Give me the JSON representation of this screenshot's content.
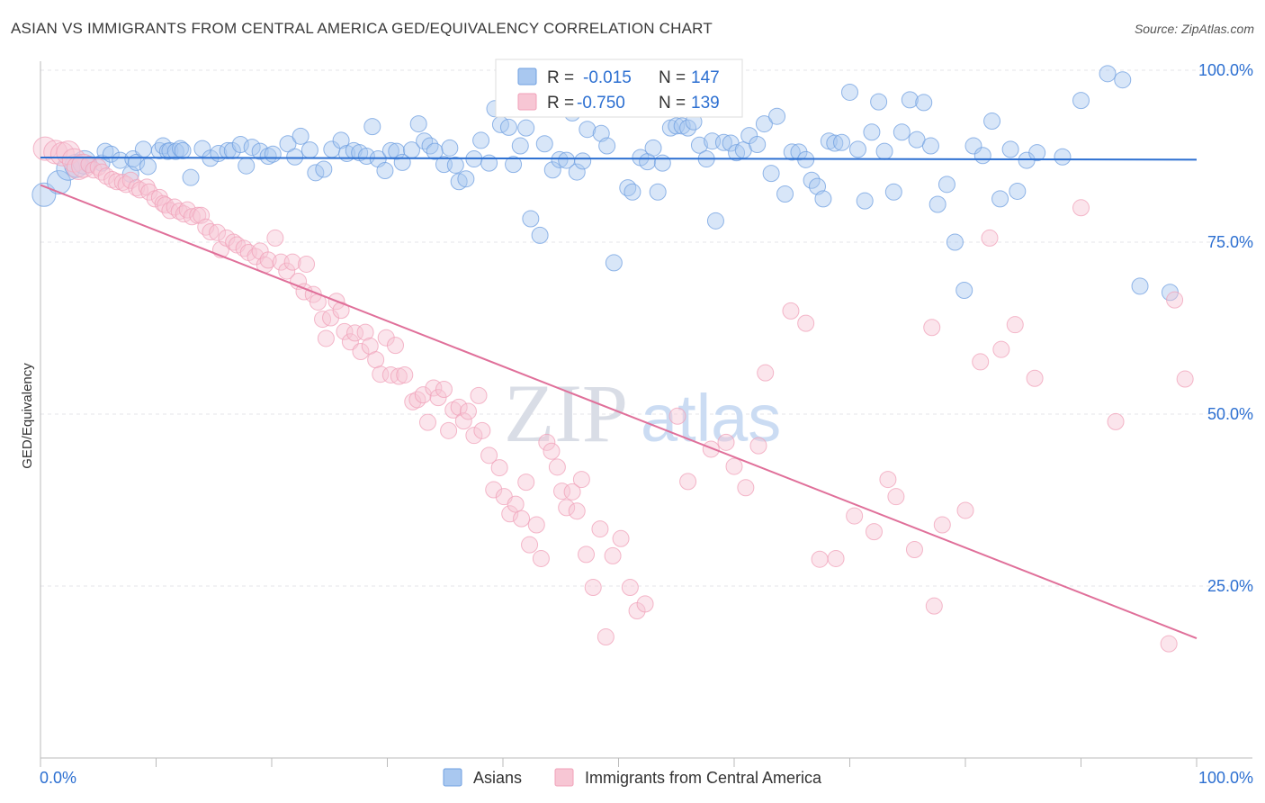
{
  "header": {
    "title": "ASIAN VS IMMIGRANTS FROM CENTRAL AMERICA GED/EQUIVALENCY CORRELATION CHART",
    "source": "Source: ZipAtlas.com"
  },
  "watermark": {
    "zip": "ZIP",
    "atlas": "atlas"
  },
  "colors": {
    "asian": "#6f9fe0",
    "asian_fill": "#a9c8f0",
    "asian_line": "#2c6fd1",
    "central": "#f0a0b8",
    "central_fill": "#f7c6d4",
    "central_line": "#e0709a",
    "value_text": "#2c6fd1",
    "grid": "#e4e4ea"
  },
  "legend_box": {
    "r_label": "R =",
    "n_label": "N =",
    "rows": [
      {
        "series": "asian",
        "r": "-0.015",
        "n": "147"
      },
      {
        "series": "central",
        "r": "-0.750",
        "n": "139"
      }
    ]
  },
  "bottom_legend": [
    "Asians",
    "Immigrants from Central America"
  ],
  "chart_data": {
    "type": "scatter",
    "title": "ASIAN VS IMMIGRANTS FROM CENTRAL AMERICA GED/EQUIVALENCY CORRELATION CHART",
    "xlabel": "",
    "ylabel": "GED/Equivalency",
    "xlim": [
      0,
      100
    ],
    "ylim": [
      0,
      100
    ],
    "x_tick_labels": [
      "0.0%",
      "100.0%"
    ],
    "y_tick_labels": [
      "25.0%",
      "50.0%",
      "75.0%",
      "100.0%"
    ],
    "y_ticks": [
      25,
      50,
      75,
      100
    ],
    "grid": true,
    "legend_position": "bottom",
    "series": [
      {
        "name": "Asians",
        "r": -0.015,
        "n": 147,
        "trend": {
          "x": [
            0,
            100
          ],
          "y": [
            87.3,
            87.0
          ]
        },
        "points": [
          [
            0.3,
            81.9
          ],
          [
            1.6,
            83.7
          ],
          [
            2.4,
            85.7
          ],
          [
            3.1,
            86.1
          ],
          [
            3.8,
            86.6
          ],
          [
            4.2,
            86.3
          ],
          [
            5.3,
            86.5
          ],
          [
            5.6,
            88.2
          ],
          [
            6.1,
            87.8
          ],
          [
            6.9,
            86.9
          ],
          [
            7.8,
            84.9
          ],
          [
            8.0,
            87.1
          ],
          [
            8.3,
            86.6
          ],
          [
            8.9,
            88.5
          ],
          [
            9.3,
            86.0
          ],
          [
            10.3,
            88.3
          ],
          [
            10.6,
            89.0
          ],
          [
            11.0,
            88.2
          ],
          [
            11.2,
            88.3
          ],
          [
            11.7,
            88.2
          ],
          [
            12.1,
            88.6
          ],
          [
            12.3,
            88.3
          ],
          [
            13.0,
            84.4
          ],
          [
            14.0,
            88.6
          ],
          [
            14.7,
            87.2
          ],
          [
            15.4,
            87.9
          ],
          [
            16.2,
            88.3
          ],
          [
            16.6,
            88.3
          ],
          [
            17.3,
            89.2
          ],
          [
            17.8,
            86.1
          ],
          [
            18.3,
            88.8
          ],
          [
            19.0,
            88.2
          ],
          [
            19.7,
            87.5
          ],
          [
            20.1,
            87.8
          ],
          [
            21.4,
            89.3
          ],
          [
            22.0,
            87.4
          ],
          [
            22.5,
            90.4
          ],
          [
            23.3,
            88.4
          ],
          [
            23.8,
            85.1
          ],
          [
            24.5,
            85.6
          ],
          [
            25.2,
            88.5
          ],
          [
            26.0,
            89.8
          ],
          [
            26.5,
            87.9
          ],
          [
            27.1,
            88.3
          ],
          [
            27.6,
            88.0
          ],
          [
            28.2,
            87.5
          ],
          [
            28.7,
            91.8
          ],
          [
            29.2,
            87.1
          ],
          [
            29.8,
            85.4
          ],
          [
            30.3,
            88.3
          ],
          [
            30.8,
            88.2
          ],
          [
            31.3,
            86.6
          ],
          [
            32.1,
            88.4
          ],
          [
            32.7,
            92.2
          ],
          [
            33.2,
            89.7
          ],
          [
            33.7,
            89.0
          ],
          [
            34.1,
            88.2
          ],
          [
            34.9,
            86.3
          ],
          [
            35.4,
            88.7
          ],
          [
            35.9,
            86.2
          ],
          [
            36.2,
            83.8
          ],
          [
            36.8,
            84.2
          ],
          [
            37.5,
            87.1
          ],
          [
            38.1,
            89.8
          ],
          [
            38.8,
            86.5
          ],
          [
            39.3,
            94.4
          ],
          [
            39.8,
            92.1
          ],
          [
            40.5,
            91.7
          ],
          [
            40.9,
            86.3
          ],
          [
            41.5,
            89.0
          ],
          [
            42.0,
            91.6
          ],
          [
            42.4,
            78.4
          ],
          [
            43.2,
            76.0
          ],
          [
            43.6,
            89.3
          ],
          [
            44.3,
            85.5
          ],
          [
            44.9,
            87.0
          ],
          [
            45.5,
            86.9
          ],
          [
            46.0,
            93.8
          ],
          [
            46.4,
            85.2
          ],
          [
            46.9,
            86.8
          ],
          [
            47.3,
            91.4
          ],
          [
            48.0,
            94.5
          ],
          [
            48.5,
            90.8
          ],
          [
            49.0,
            89.0
          ],
          [
            49.6,
            72.0
          ],
          [
            50.2,
            94.7
          ],
          [
            50.8,
            82.9
          ],
          [
            51.2,
            82.3
          ],
          [
            51.9,
            87.3
          ],
          [
            52.5,
            86.7
          ],
          [
            53.0,
            88.7
          ],
          [
            53.4,
            82.3
          ],
          [
            53.8,
            86.5
          ],
          [
            54.5,
            91.6
          ],
          [
            55.0,
            91.9
          ],
          [
            55.5,
            91.9
          ],
          [
            56.0,
            91.6
          ],
          [
            56.5,
            92.5
          ],
          [
            57.0,
            89.1
          ],
          [
            57.6,
            87.1
          ],
          [
            58.1,
            89.7
          ],
          [
            58.4,
            78.1
          ],
          [
            59.1,
            89.5
          ],
          [
            59.7,
            89.4
          ],
          [
            60.2,
            88.0
          ],
          [
            60.8,
            88.4
          ],
          [
            61.3,
            90.5
          ],
          [
            62.0,
            89.2
          ],
          [
            62.6,
            92.2
          ],
          [
            63.2,
            85.0
          ],
          [
            63.7,
            93.3
          ],
          [
            64.4,
            82.0
          ],
          [
            65.0,
            88.1
          ],
          [
            65.6,
            88.1
          ],
          [
            66.2,
            87.0
          ],
          [
            66.7,
            84.0
          ],
          [
            67.2,
            83.1
          ],
          [
            67.7,
            81.3
          ],
          [
            68.2,
            89.7
          ],
          [
            68.7,
            89.4
          ],
          [
            69.3,
            89.5
          ],
          [
            70.0,
            96.8
          ],
          [
            70.7,
            88.5
          ],
          [
            71.3,
            81.0
          ],
          [
            71.9,
            91.0
          ],
          [
            72.5,
            95.4
          ],
          [
            73.0,
            88.2
          ],
          [
            73.8,
            82.3
          ],
          [
            74.5,
            91.0
          ],
          [
            75.2,
            95.7
          ],
          [
            75.8,
            89.9
          ],
          [
            76.4,
            95.3
          ],
          [
            77.0,
            89.0
          ],
          [
            77.6,
            80.5
          ],
          [
            78.4,
            83.4
          ],
          [
            79.1,
            75.0
          ],
          [
            79.9,
            68.0
          ],
          [
            80.7,
            89.0
          ],
          [
            81.5,
            87.6
          ],
          [
            82.3,
            92.6
          ],
          [
            83.0,
            81.3
          ],
          [
            83.9,
            88.5
          ],
          [
            84.5,
            82.4
          ],
          [
            85.3,
            86.9
          ],
          [
            86.2,
            88.0
          ],
          [
            88.4,
            87.4
          ],
          [
            90.0,
            95.6
          ],
          [
            92.3,
            99.5
          ],
          [
            93.6,
            98.6
          ],
          [
            95.1,
            68.6
          ],
          [
            97.7,
            67.7
          ]
        ]
      },
      {
        "name": "Immigrants from Central America",
        "r": -0.75,
        "n": 139,
        "trend": {
          "x": [
            0,
            100
          ],
          "y": [
            83.3,
            17.4
          ]
        },
        "points": [
          [
            0.4,
            88.6
          ],
          [
            1.3,
            88.1
          ],
          [
            1.9,
            87.8
          ],
          [
            2.4,
            88.0
          ],
          [
            2.9,
            86.9
          ],
          [
            3.3,
            85.8
          ],
          [
            3.7,
            86.1
          ],
          [
            4.2,
            86.3
          ],
          [
            4.6,
            85.5
          ],
          [
            5.0,
            85.9
          ],
          [
            5.3,
            85.2
          ],
          [
            5.7,
            84.6
          ],
          [
            6.2,
            84.1
          ],
          [
            6.6,
            83.8
          ],
          [
            7.1,
            83.7
          ],
          [
            7.4,
            83.4
          ],
          [
            7.8,
            84.0
          ],
          [
            8.3,
            82.9
          ],
          [
            8.6,
            82.6
          ],
          [
            9.2,
            83.0
          ],
          [
            9.4,
            82.3
          ],
          [
            9.9,
            81.3
          ],
          [
            10.3,
            81.5
          ],
          [
            10.6,
            80.6
          ],
          [
            10.8,
            80.4
          ],
          [
            11.2,
            79.6
          ],
          [
            11.6,
            80.1
          ],
          [
            12.0,
            79.5
          ],
          [
            12.4,
            79.1
          ],
          [
            12.7,
            79.7
          ],
          [
            13.1,
            78.7
          ],
          [
            13.6,
            78.9
          ],
          [
            13.9,
            78.9
          ],
          [
            14.3,
            77.2
          ],
          [
            14.7,
            76.5
          ],
          [
            15.3,
            76.4
          ],
          [
            15.6,
            73.9
          ],
          [
            16.1,
            75.6
          ],
          [
            16.7,
            75.0
          ],
          [
            17.0,
            74.6
          ],
          [
            17.6,
            74.1
          ],
          [
            18.0,
            73.5
          ],
          [
            18.6,
            72.9
          ],
          [
            19.0,
            73.7
          ],
          [
            19.4,
            71.7
          ],
          [
            19.7,
            72.4
          ],
          [
            20.3,
            75.6
          ],
          [
            20.8,
            72.1
          ],
          [
            21.3,
            70.8
          ],
          [
            21.8,
            72.1
          ],
          [
            22.3,
            69.3
          ],
          [
            22.8,
            67.8
          ],
          [
            23.0,
            71.8
          ],
          [
            23.6,
            67.4
          ],
          [
            24.0,
            66.3
          ],
          [
            24.4,
            63.8
          ],
          [
            24.7,
            61.0
          ],
          [
            25.1,
            64.0
          ],
          [
            25.6,
            66.4
          ],
          [
            26.0,
            65.1
          ],
          [
            26.3,
            62.0
          ],
          [
            26.8,
            60.5
          ],
          [
            27.2,
            61.8
          ],
          [
            27.7,
            59.1
          ],
          [
            28.1,
            61.9
          ],
          [
            28.5,
            59.9
          ],
          [
            29.0,
            57.9
          ],
          [
            29.4,
            55.8
          ],
          [
            29.9,
            61.1
          ],
          [
            30.3,
            55.7
          ],
          [
            30.7,
            60.0
          ],
          [
            31.0,
            55.5
          ],
          [
            31.5,
            55.7
          ],
          [
            32.2,
            51.8
          ],
          [
            32.6,
            52.1
          ],
          [
            33.1,
            52.8
          ],
          [
            33.5,
            48.8
          ],
          [
            34.0,
            53.8
          ],
          [
            34.4,
            52.4
          ],
          [
            34.9,
            53.6
          ],
          [
            35.3,
            47.6
          ],
          [
            35.7,
            50.6
          ],
          [
            36.2,
            51.0
          ],
          [
            36.6,
            49.0
          ],
          [
            37.0,
            50.4
          ],
          [
            37.5,
            46.9
          ],
          [
            37.9,
            52.7
          ],
          [
            38.2,
            47.6
          ],
          [
            38.8,
            44.0
          ],
          [
            39.2,
            39.0
          ],
          [
            39.7,
            42.2
          ],
          [
            40.1,
            38.0
          ],
          [
            40.6,
            35.5
          ],
          [
            41.1,
            36.9
          ],
          [
            41.6,
            34.8
          ],
          [
            42.0,
            40.1
          ],
          [
            42.3,
            31.0
          ],
          [
            42.9,
            33.9
          ],
          [
            43.3,
            29.0
          ],
          [
            43.8,
            45.9
          ],
          [
            44.2,
            44.6
          ],
          [
            44.7,
            42.3
          ],
          [
            45.1,
            38.8
          ],
          [
            45.5,
            36.4
          ],
          [
            46.0,
            38.7
          ],
          [
            46.4,
            35.9
          ],
          [
            46.8,
            40.5
          ],
          [
            47.2,
            29.6
          ],
          [
            47.8,
            24.8
          ],
          [
            48.4,
            33.3
          ],
          [
            48.9,
            17.6
          ],
          [
            49.5,
            29.4
          ],
          [
            50.2,
            31.9
          ],
          [
            51.0,
            24.8
          ],
          [
            51.6,
            21.4
          ],
          [
            52.3,
            22.4
          ],
          [
            55.1,
            49.7
          ],
          [
            56.0,
            40.2
          ],
          [
            58.0,
            44.9
          ],
          [
            59.3,
            45.9
          ],
          [
            60.0,
            42.4
          ],
          [
            61.0,
            39.3
          ],
          [
            62.1,
            45.4
          ],
          [
            62.7,
            56.0
          ],
          [
            64.9,
            65.0
          ],
          [
            66.2,
            63.2
          ],
          [
            67.4,
            28.9
          ],
          [
            68.8,
            29.0
          ],
          [
            70.4,
            35.2
          ],
          [
            72.1,
            32.9
          ],
          [
            73.3,
            40.5
          ],
          [
            74.0,
            38.0
          ],
          [
            75.6,
            30.3
          ],
          [
            77.1,
            62.6
          ],
          [
            78.0,
            33.9
          ],
          [
            80.0,
            36.0
          ],
          [
            81.3,
            57.6
          ],
          [
            82.1,
            75.6
          ],
          [
            83.1,
            59.4
          ],
          [
            84.3,
            63.0
          ],
          [
            86.0,
            55.2
          ],
          [
            90.0,
            80.0
          ],
          [
            93.0,
            48.9
          ],
          [
            97.6,
            16.6
          ],
          [
            98.1,
            66.6
          ],
          [
            99.0,
            55.1
          ],
          [
            77.3,
            22.1
          ]
        ]
      }
    ]
  }
}
